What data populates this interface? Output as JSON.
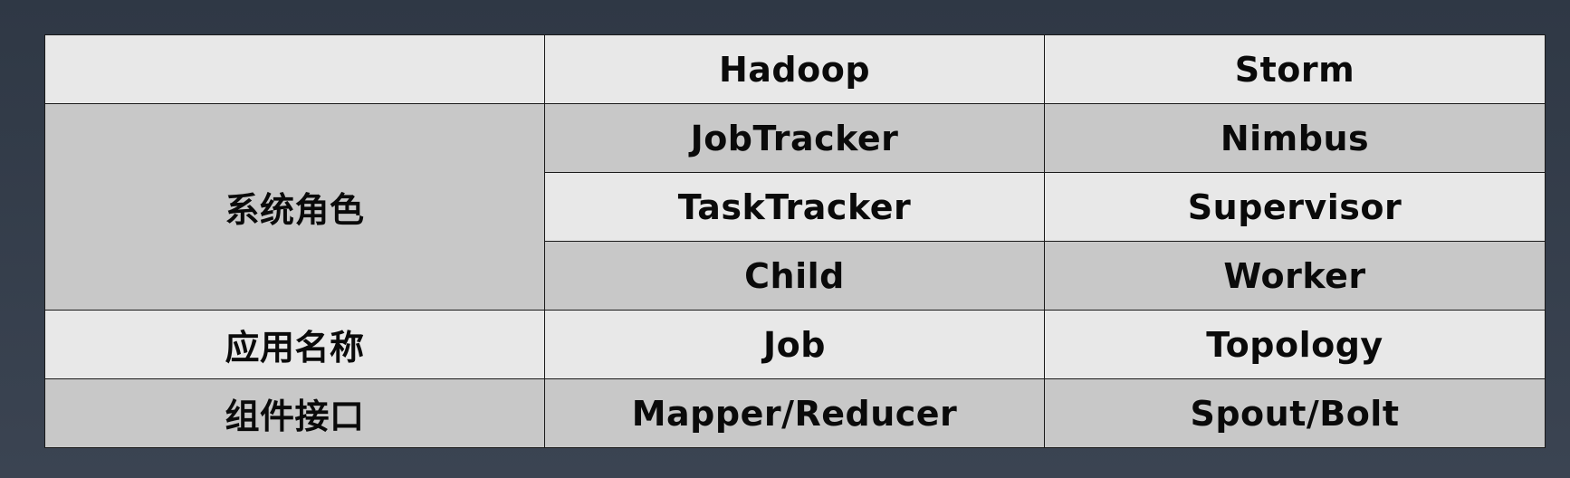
{
  "table": {
    "header": [
      "",
      "Hadoop",
      "Storm"
    ],
    "sections": [
      {
        "label": "系统角色",
        "rows": [
          [
            "JobTracker",
            "Nimbus"
          ],
          [
            "TaskTracker",
            "Supervisor"
          ],
          [
            "Child",
            "Worker"
          ]
        ]
      },
      {
        "label": "应用名称",
        "rows": [
          [
            "Job",
            "Topology"
          ]
        ]
      },
      {
        "label": "组件接口",
        "rows": [
          [
            "Mapper/Reducer",
            "Spout/Bolt"
          ]
        ]
      }
    ]
  },
  "colors": {
    "background_top": "#2f3845",
    "background_bottom": "#3b4452",
    "row_light": "#e8e8e8",
    "row_dark": "#c8c8c8",
    "border": "#1a1a1a"
  }
}
